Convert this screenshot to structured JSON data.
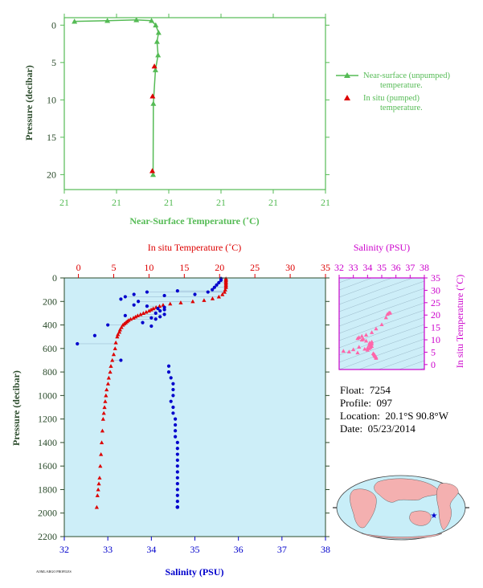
{
  "colors": {
    "green": "#55bb55",
    "red": "#dd0000",
    "blue": "#0000cc",
    "magenta": "#cc00cc",
    "pink": "#ff66aa",
    "panel_bg": "#cdeef8",
    "land": "#f4b0b0",
    "ocean": "#c8eef8",
    "axis_text": "#2a4a2a"
  },
  "info": {
    "float_label": "Float:",
    "float_value": "7254",
    "profile_label": "Profile:",
    "profile_value": "097",
    "location_label": "Location:",
    "location_value": "20.1°S  90.8°W",
    "date_label": "Date:",
    "date_value": "05/23/2014"
  },
  "footer_small": "AOML/ARGO PROFILES",
  "chart_data": [
    {
      "type": "line",
      "name": "top",
      "xlabel": "Near-Surface Temperature (˚C)",
      "ylabel": "Pressure (decibar)",
      "x_tick_labels": [
        "21",
        "21",
        "21",
        "21",
        "21",
        "21"
      ],
      "y_tick_labels": [
        "0",
        "5",
        "10",
        "15",
        "20"
      ],
      "xlim": [
        20.9,
        21.0
      ],
      "ylim": [
        22,
        -1
      ],
      "legend": {
        "placement": "right",
        "series1_line1": "Near-surface (unpumped)",
        "series1_line2": "temperature.",
        "series2_line1": "In situ (pumped)",
        "series2_line2": "temperature."
      },
      "series": [
        {
          "name": "Near-surface (unpumped) temperature.",
          "x": [
            20.9039,
            20.9165,
            20.9276,
            20.9334,
            20.935,
            20.9361,
            20.9355,
            20.9359,
            20.9349,
            20.9341,
            20.934
          ],
          "y": [
            -0.5,
            -0.6,
            -0.7,
            -0.6,
            0.0,
            1.0,
            2.2,
            4.0,
            6.0,
            10.5,
            20.0
          ]
        },
        {
          "name": "In situ (pumped) temperature.",
          "x": [
            20.9345,
            20.9338,
            20.9337
          ],
          "y": [
            5.5,
            9.5,
            19.5
          ]
        }
      ]
    },
    {
      "type": "scatter",
      "name": "main",
      "title_top": "In situ Temperature (˚C)",
      "xlabel": "Salinity (PSU)",
      "ylabel": "Pressure (decibar)",
      "temp_ticks": [
        "0",
        "5",
        "10",
        "15",
        "20",
        "25",
        "30",
        "35"
      ],
      "sal_ticks": [
        "32",
        "33",
        "34",
        "35",
        "36",
        "37",
        "38"
      ],
      "p_ticks": [
        "0",
        "200",
        "400",
        "600",
        "800",
        "1000",
        "1200",
        "1400",
        "1600",
        "1800",
        "2000",
        "2200"
      ],
      "temp_range": [
        -2,
        35
      ],
      "sal_range": [
        32,
        38
      ],
      "p_range": [
        2200,
        0
      ],
      "temperature": {
        "t": [
          20.9,
          20.9,
          20.9,
          20.9,
          20.9,
          20.9,
          20.9,
          20.9,
          20.9,
          20.8,
          20.7,
          20.4,
          19.9,
          19.0,
          17.8,
          16.2,
          14.5,
          13.0,
          12.0,
          11.5,
          11.0,
          10.6,
          10.3,
          10.0,
          9.6,
          9.2,
          8.8,
          8.4,
          8.1,
          7.8,
          7.4,
          7.1,
          6.9,
          6.7,
          6.5,
          6.3,
          6.1,
          5.9,
          5.8,
          5.6,
          5.5,
          5.3,
          5.2,
          5.0,
          4.8,
          4.6,
          4.5,
          4.3,
          4.2,
          4.0,
          3.9,
          3.8,
          3.7,
          3.6,
          3.5,
          3.4,
          3.3,
          3.2,
          3.1,
          3.0,
          2.9,
          2.8,
          2.7,
          2.6
        ],
        "p": [
          5,
          10,
          20,
          30,
          40,
          50,
          60,
          70,
          80,
          100,
          120,
          140,
          160,
          175,
          190,
          200,
          210,
          220,
          230,
          240,
          250,
          260,
          270,
          280,
          290,
          300,
          310,
          320,
          330,
          340,
          350,
          360,
          370,
          380,
          390,
          400,
          420,
          440,
          460,
          480,
          500,
          550,
          600,
          650,
          700,
          750,
          800,
          850,
          900,
          950,
          1000,
          1050,
          1100,
          1150,
          1200,
          1300,
          1400,
          1500,
          1600,
          1700,
          1750,
          1800,
          1850,
          1950
        ]
      },
      "salinity": {
        "s": [
          35.6,
          35.6,
          35.55,
          35.5,
          35.45,
          35.4,
          35.3,
          35.0,
          34.6,
          34.3,
          33.9,
          33.6,
          33.4,
          33.3,
          33.7,
          33.6,
          33.9,
          34.3,
          34.15,
          34.3,
          34.2,
          34.1,
          34.3,
          33.4,
          34.2,
          34.0,
          34.1,
          33.8,
          33.0,
          34.0,
          32.3,
          32.7,
          33.3,
          34.4,
          34.4,
          34.45,
          34.5,
          34.5,
          34.5,
          34.45,
          34.5,
          34.5,
          34.55,
          34.55,
          34.55,
          34.55,
          34.6,
          34.6,
          34.6,
          34.6,
          34.6,
          34.6,
          34.6,
          34.6,
          34.6,
          34.6,
          34.6,
          34.6,
          34.6,
          34.6,
          34.6,
          34.6,
          34.6,
          34.6
        ],
        "p": [
          5,
          20,
          40,
          60,
          80,
          100,
          120,
          140,
          110,
          150,
          120,
          140,
          160,
          180,
          200,
          230,
          240,
          250,
          260,
          270,
          280,
          300,
          310,
          320,
          330,
          340,
          350,
          380,
          400,
          410,
          560,
          490,
          700,
          750,
          800,
          850,
          900,
          950,
          1000,
          1050,
          1100,
          1150,
          1200,
          1250,
          1300,
          1350,
          1400,
          1450,
          1500,
          1550,
          1600,
          1650,
          1700,
          1750,
          1800,
          1850,
          1900,
          1950,
          1950,
          1950,
          1950,
          1950,
          1950,
          1950
        ]
      }
    },
    {
      "type": "scatter",
      "name": "ts",
      "title_top": "Salinity (PSU)",
      "ylabel": "In situ Temperature (˚C)",
      "sal_ticks": [
        "32",
        "33",
        "34",
        "35",
        "36",
        "37",
        "38"
      ],
      "temp_ticks": [
        "0",
        "5",
        "10",
        "15",
        "20",
        "25",
        "30",
        "35"
      ],
      "sal_range": [
        32,
        38
      ],
      "temp_range": [
        -2,
        35
      ],
      "points_s": [
        35.6,
        35.55,
        35.5,
        35.4,
        35.3,
        35.0,
        34.6,
        34.3,
        33.9,
        33.6,
        33.4,
        33.3,
        33.7,
        33.6,
        33.9,
        34.3,
        34.15,
        34.3,
        34.2,
        34.1,
        34.3,
        33.4,
        34.2,
        34.0,
        34.1,
        33.8,
        33.0,
        34.0,
        32.3,
        32.7,
        33.3,
        34.4,
        34.45,
        34.5,
        34.5,
        34.55,
        34.6,
        34.6
      ],
      "points_t": [
        20.9,
        20.9,
        20.8,
        20.4,
        19.0,
        16.2,
        14.5,
        13.0,
        12.0,
        11.5,
        11.0,
        10.6,
        10.3,
        10.0,
        9.6,
        9.2,
        8.8,
        8.4,
        8.1,
        7.8,
        7.4,
        7.1,
        6.9,
        6.7,
        6.5,
        6.3,
        6.1,
        5.9,
        5.5,
        5.2,
        4.8,
        4.5,
        4.2,
        3.9,
        3.6,
        3.3,
        3.0,
        2.6
      ]
    }
  ]
}
